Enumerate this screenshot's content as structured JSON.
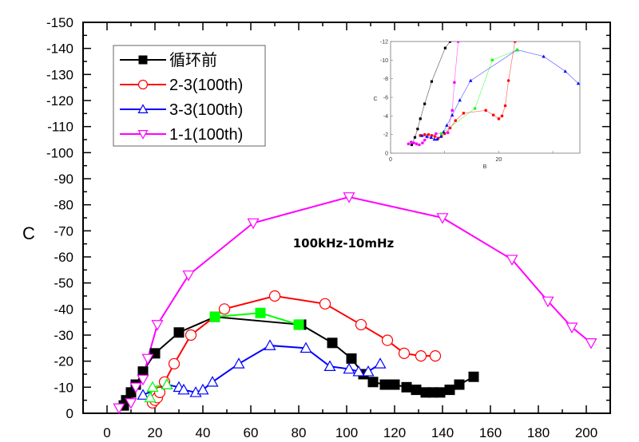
{
  "chart_data": {
    "type": "line",
    "title": "",
    "xlabel": "",
    "ylabel": "C",
    "xlim": [
      -10,
      210
    ],
    "ylim": [
      0,
      -150
    ],
    "x_ticks": [
      "0",
      "20",
      "40",
      "60",
      "80",
      "100",
      "120",
      "140",
      "160",
      "180",
      "200"
    ],
    "x_tick_values": [
      0,
      20,
      40,
      60,
      80,
      100,
      120,
      140,
      160,
      180,
      200
    ],
    "y_ticks": [
      "0",
      "-10",
      "-20",
      "-30",
      "-40",
      "-50",
      "-60",
      "-70",
      "-80",
      "-90",
      "-100",
      "-110",
      "-120",
      "-130",
      "-140",
      "-150"
    ],
    "y_tick_values": [
      0,
      -10,
      -20,
      -30,
      -40,
      -50,
      -60,
      -70,
      -80,
      -90,
      -100,
      -110,
      -120,
      -130,
      -140,
      -150
    ],
    "annotation": "100kHz-10mHz",
    "legend_position": "top-left",
    "series": [
      {
        "name": "循环前",
        "color": "#000000",
        "marker": "square-filled",
        "x": [
          7,
          8,
          10,
          12,
          15,
          20,
          30,
          45,
          81,
          94,
          102,
          107,
          111,
          116,
          120,
          125,
          129,
          133,
          136,
          139,
          143,
          147,
          153
        ],
        "y": [
          -3,
          -5,
          -8,
          -11,
          -16,
          -23,
          -31,
          -37,
          -34,
          -27,
          -21,
          -15,
          -12,
          -11,
          -11,
          -10,
          -9,
          -8,
          -8,
          -8,
          -9,
          -11,
          -14
        ]
      },
      {
        "name": "2-3(100th)",
        "color": "#ff0000",
        "marker": "circle-open",
        "x": [
          19,
          20,
          21,
          22,
          24,
          28,
          35,
          49,
          70,
          91,
          106,
          117,
          124,
          131,
          137
        ],
        "y": [
          -4,
          -5,
          -6,
          -8,
          -12,
          -19,
          -30,
          -40,
          -45,
          -42,
          -34,
          -28,
          -23,
          -22,
          -22
        ]
      },
      {
        "name": "3-3(100th)",
        "color": "#0000ff",
        "marker": "triangle-up-open",
        "x": [
          15,
          25,
          30,
          32,
          37,
          40,
          44,
          55,
          68,
          83,
          93,
          101,
          105,
          109,
          114
        ],
        "y": [
          -7,
          -11,
          -10,
          -9,
          -8,
          -9,
          -12,
          -19,
          -26,
          -25,
          -18,
          -17,
          -16,
          -16,
          -19
        ]
      },
      {
        "name": "1-1(100th)",
        "color": "#ff00ff",
        "marker": "triangle-down-open",
        "x": [
          5,
          10,
          12,
          15,
          17,
          21,
          34,
          61,
          101,
          140,
          169,
          184,
          194,
          202
        ],
        "y": [
          -2,
          -4,
          -10,
          -13,
          -21,
          -34,
          -53,
          -73,
          -83,
          -75,
          -59,
          -43,
          -33,
          -27
        ]
      },
      {
        "name": "",
        "color": "#00ff00",
        "marker": "square-filled",
        "x": [
          45,
          64,
          80
        ],
        "y": [
          -37,
          -38.5,
          -34
        ]
      },
      {
        "name": "",
        "color": "#00ff00",
        "marker": "triangle-up-open",
        "x": [
          18,
          19,
          25
        ],
        "y": [
          -6,
          -10,
          -11
        ]
      }
    ],
    "inset": {
      "type": "line",
      "xlabel": "B",
      "ylabel": "C",
      "xlim": [
        0,
        35
      ],
      "ylim": [
        0,
        -12
      ],
      "x_ticks": [
        "0",
        "20"
      ],
      "y_ticks": [
        "0",
        "-2",
        "-4",
        "-6",
        "-8",
        "-10",
        "-12"
      ],
      "series": [
        {
          "color": "#000000",
          "x": [
            3.9,
            4.5,
            5,
            5.5,
            6.3,
            7.6,
            10.1,
            11
          ],
          "y": [
            -0.9,
            -1.7,
            -2.6,
            -3.7,
            -5.3,
            -7.7,
            -11.3,
            -12
          ]
        },
        {
          "color": "#ff0000",
          "x": [
            5.5,
            6.3,
            7,
            7.6,
            8.2,
            8.8,
            9.4,
            10,
            11,
            12,
            13.5,
            17.6,
            19,
            20,
            20.6,
            21.2,
            21.8,
            23
          ],
          "y": [
            -1.9,
            -2,
            -2,
            -1.9,
            -1.8,
            -1.6,
            -1.8,
            -2.1,
            -2.7,
            -3.5,
            -4.3,
            -4.6,
            -4.1,
            -3.7,
            -4,
            -5.1,
            -7.8,
            -12
          ]
        },
        {
          "color": "#0000ff",
          "x": [
            5.8,
            6.7,
            7.5,
            8.1,
            8.6,
            9.3,
            9.8,
            10.4,
            11.4,
            12.8,
            14.8,
            23.4,
            28.3,
            32.3,
            34.7
          ],
          "y": [
            -1.9,
            -1.8,
            -1.7,
            -1.5,
            -1.5,
            -1.8,
            -2.3,
            -3,
            -4.1,
            -5.7,
            -7.8,
            -11.1,
            -10.4,
            -8.8,
            -7.5
          ]
        },
        {
          "color": "#ff00ff",
          "x": [
            3.3,
            3.8,
            4.3,
            4.8,
            5.3,
            5.9,
            6.3,
            8.4,
            10.6,
            11.4,
            11.8,
            12.5
          ],
          "y": [
            -1,
            -1.2,
            -1.1,
            -1,
            -0.9,
            -1.1,
            -1.4,
            -2.1,
            -2.2,
            -4.6,
            -7.6,
            -12
          ]
        },
        {
          "color": "#00ff00",
          "x": [
            9.4,
            15.6,
            18.8,
            23.4
          ],
          "y": [
            -2.1,
            -4.8,
            -10,
            -11.1
          ]
        }
      ]
    }
  }
}
